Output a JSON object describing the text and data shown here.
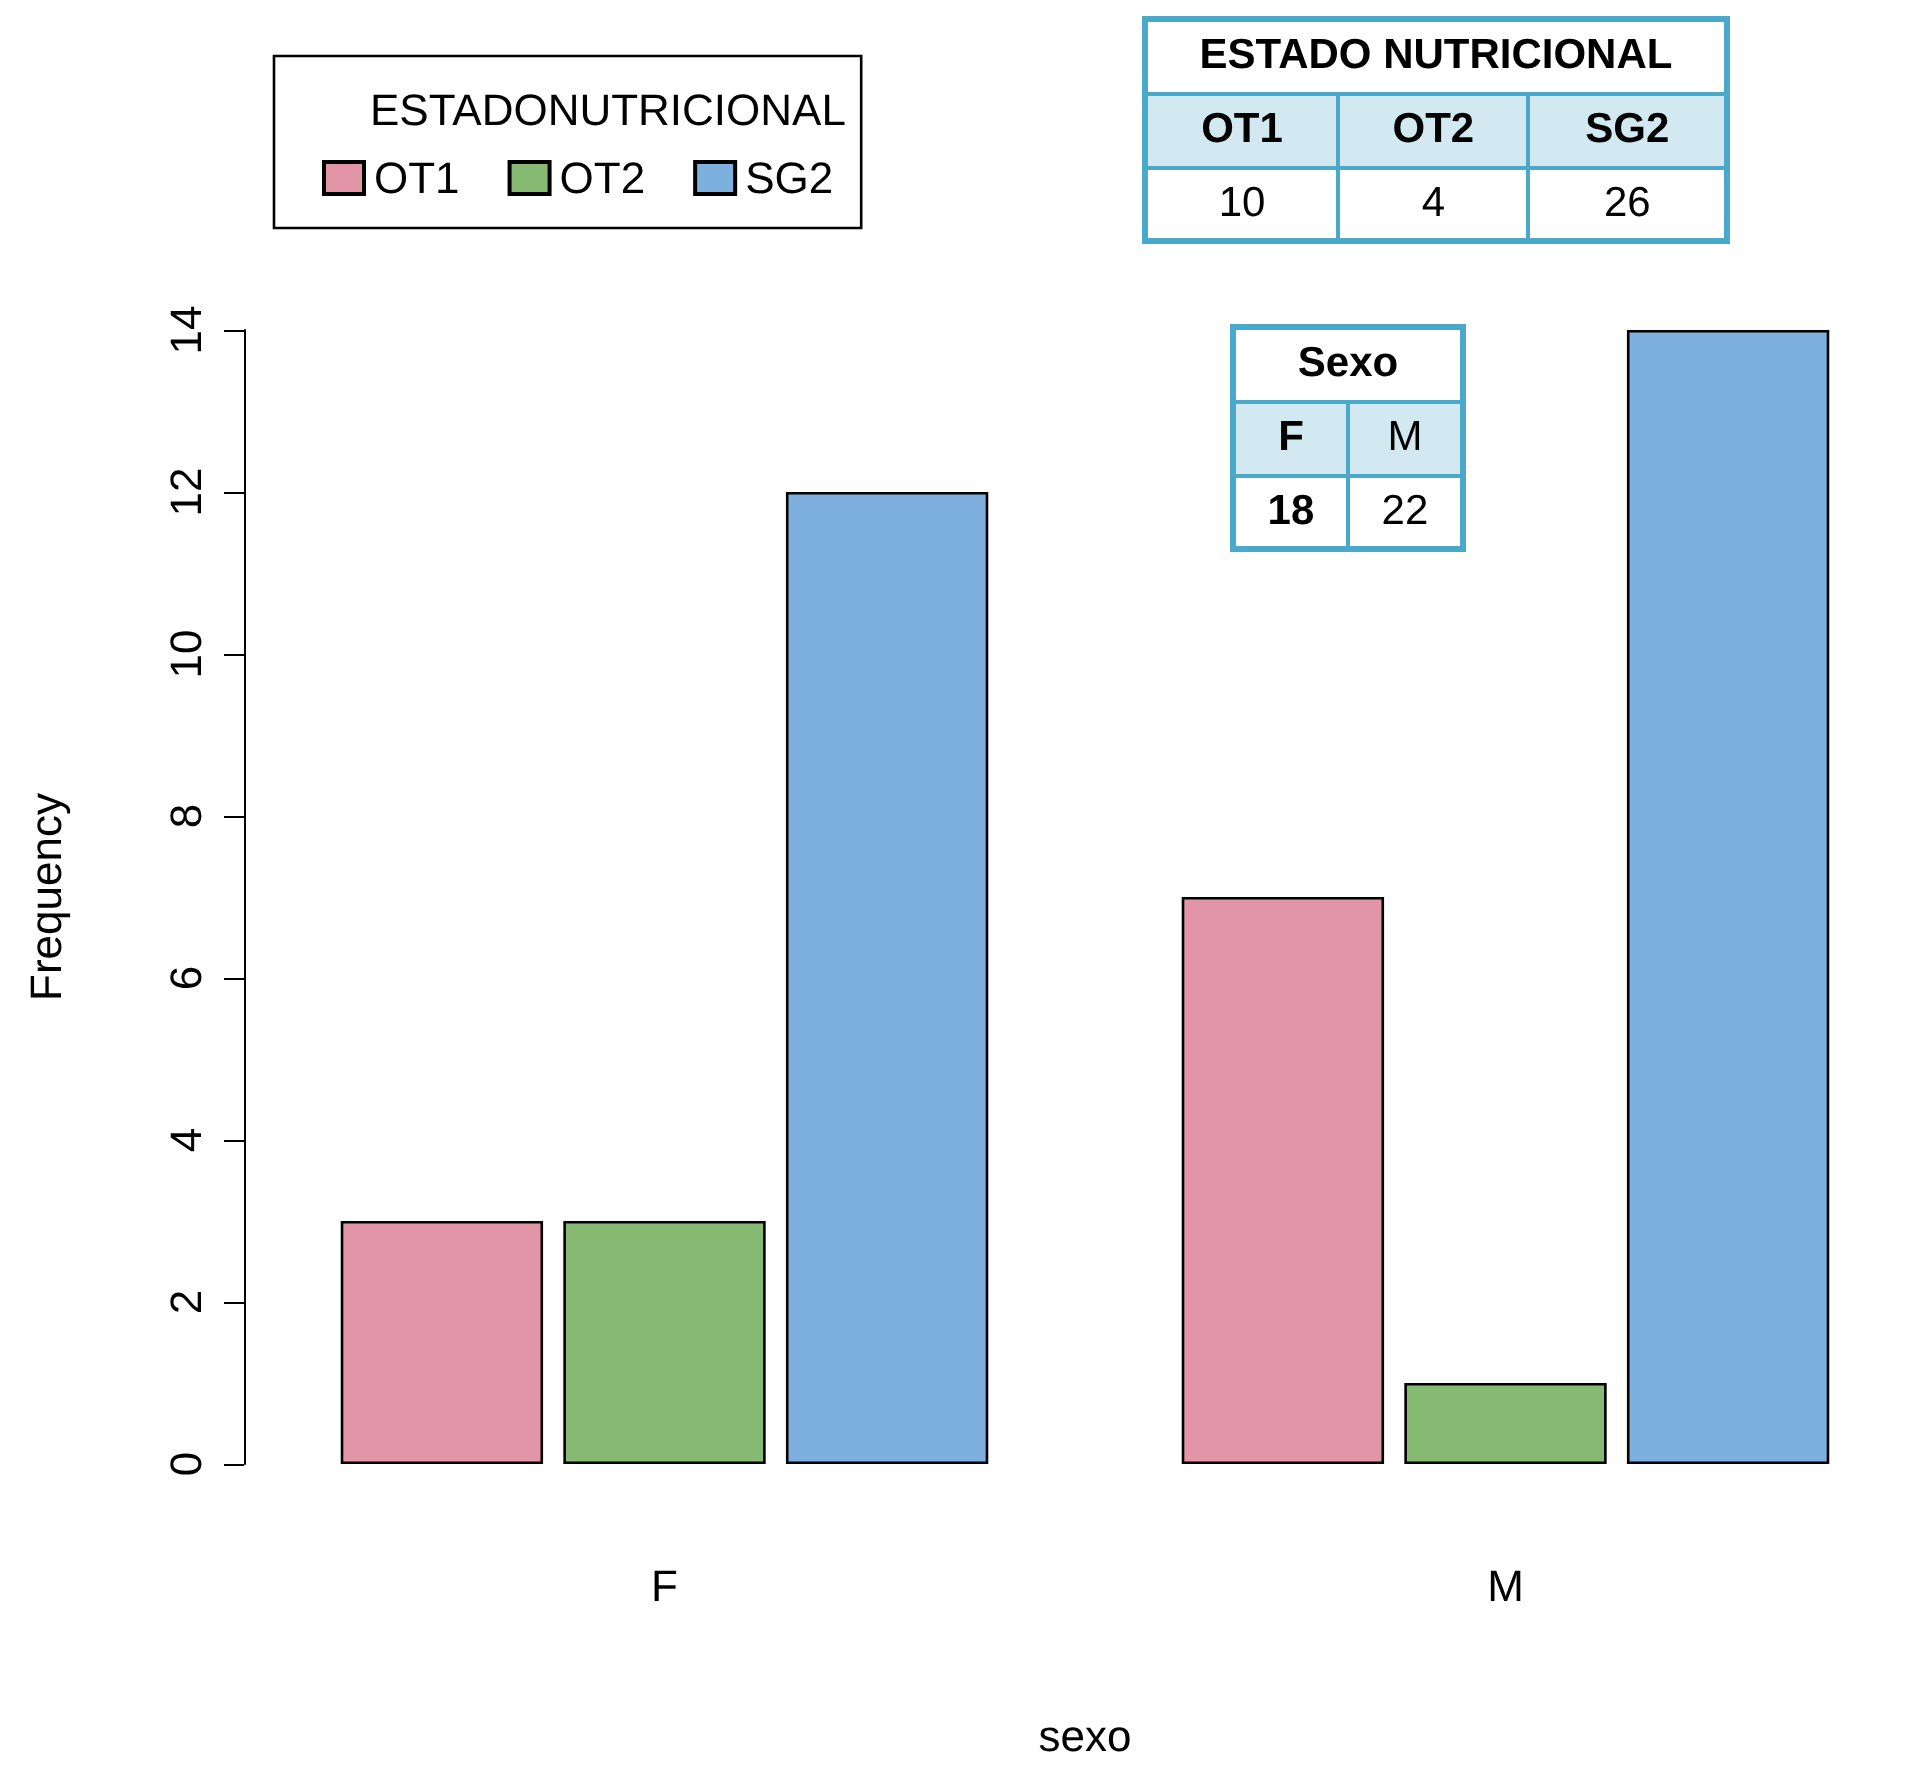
{
  "chart_data": [
    {
      "type": "bar",
      "xlabel": "sexo",
      "ylabel": "Frequency",
      "legend_title": "ESTADONUTRICIONAL",
      "legend": "top left",
      "grid": false,
      "categories": [
        "F",
        "M"
      ],
      "ylim": [
        0,
        14
      ],
      "yticks": [
        0,
        2,
        4,
        6,
        8,
        10,
        12,
        14
      ],
      "series": [
        {
          "name": "OT1",
          "color": "#e295a6",
          "values": [
            3,
            7
          ]
        },
        {
          "name": "OT2",
          "color": "#86ba72",
          "values": [
            3,
            1
          ]
        },
        {
          "name": "SG2",
          "color": "#7dafdf",
          "values": [
            12,
            14
          ]
        }
      ]
    },
    {
      "type": "other",
      "title": "ESTADO NUTRICIONAL",
      "categories": [
        "OT1",
        "OT2",
        "SG2"
      ],
      "values": [
        10,
        4,
        26
      ],
      "data_labels": true
    },
    {
      "type": "other",
      "title": "Sexo",
      "categories": [
        "F",
        "M"
      ],
      "values": [
        18,
        22
      ],
      "data_labels": true
    }
  ]
}
